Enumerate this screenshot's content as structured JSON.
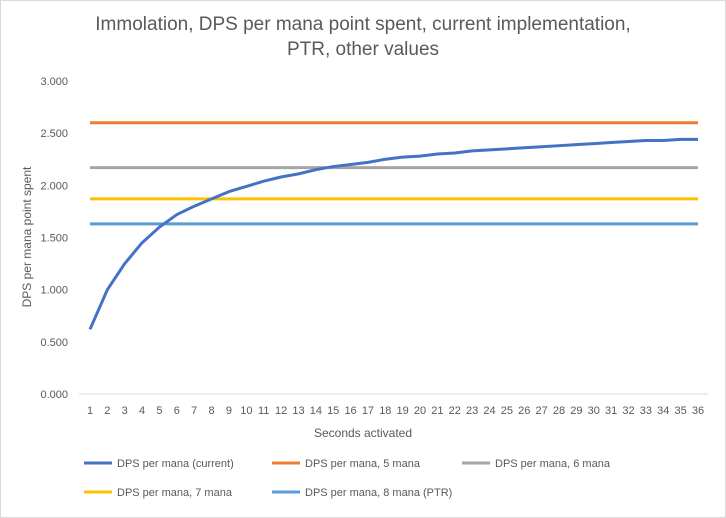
{
  "chart_data": {
    "type": "line",
    "title_line1": "Immolation, DPS per mana point spent, current implementation,",
    "title_line2": "PTR, other values",
    "xlabel": "Seconds activated",
    "ylabel": "DPS per mana point spent",
    "ylim": [
      0,
      3
    ],
    "yticks": [
      "0.000",
      "0.500",
      "1.000",
      "1.500",
      "2.000",
      "2.500",
      "3.000"
    ],
    "x": [
      1,
      2,
      3,
      4,
      5,
      6,
      7,
      8,
      9,
      10,
      11,
      12,
      13,
      14,
      15,
      16,
      17,
      18,
      19,
      20,
      21,
      22,
      23,
      24,
      25,
      26,
      27,
      28,
      29,
      30,
      31,
      32,
      33,
      34,
      35,
      36
    ],
    "grid": false,
    "legend": "bottom",
    "series": [
      {
        "name": "DPS per mana (current)",
        "color": "#4472c4",
        "values": [
          0.62,
          1.0,
          1.25,
          1.45,
          1.6,
          1.72,
          1.8,
          1.87,
          1.94,
          1.99,
          2.04,
          2.08,
          2.11,
          2.15,
          2.18,
          2.2,
          2.22,
          2.25,
          2.27,
          2.28,
          2.3,
          2.31,
          2.33,
          2.34,
          2.35,
          2.36,
          2.37,
          2.38,
          2.39,
          2.4,
          2.41,
          2.42,
          2.43,
          2.43,
          2.44,
          2.44
        ]
      },
      {
        "name": "DPS per mana, 5 mana",
        "color": "#ed7d31",
        "constant": 2.6
      },
      {
        "name": "DPS per mana, 6 mana",
        "color": "#a5a5a5",
        "constant": 2.17
      },
      {
        "name": "DPS per mana, 7 mana",
        "color": "#ffc000",
        "constant": 1.87
      },
      {
        "name": "DPS per mana, 8 mana (PTR)",
        "color": "#5b9bd5",
        "constant": 1.63
      }
    ]
  }
}
